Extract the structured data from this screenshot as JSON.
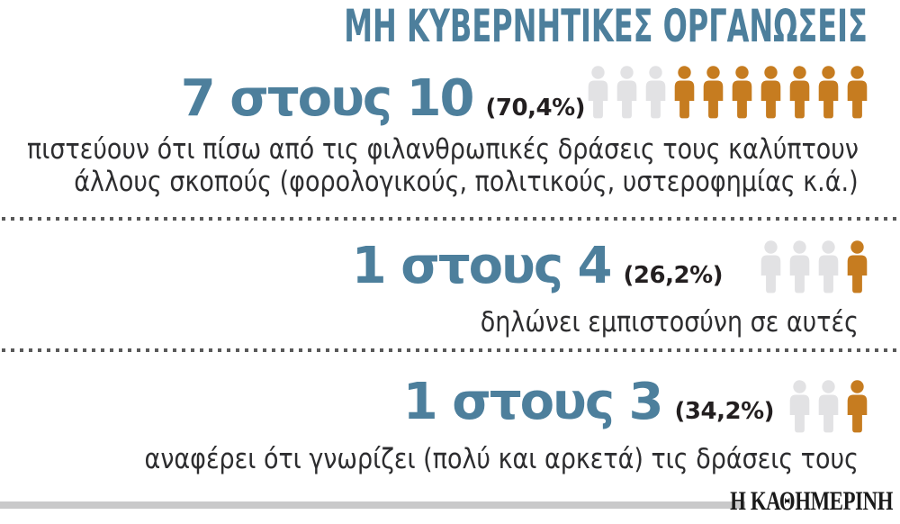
{
  "title": "ΜΗ ΚΥΒΕΡΝΗΤΙΚΕΣ ΟΡΓΑΝΩΣΕΙΣ",
  "colors": {
    "accent-blue": "#4d7f9c",
    "percent-dark": "#231f20",
    "text-dark": "#2d2d2f",
    "icon-gray": "#e2e2e4",
    "icon-orange": "#c67c20",
    "divider": "#595959",
    "footer-bar": "#c9c9ca",
    "brand": "#1a1a1a"
  },
  "rows": [
    {
      "ratio_label": "7 στους 10",
      "percent_label": "(70,4%)",
      "description_lines": [
        "πιστεύουν ότι πίσω από τις φιλανθρωπικές δράσεις τους καλύπτουν",
        "άλλους σκοπούς (φορολογικούς, πολιτικούς, υστεροφημίας κ.ά.)"
      ],
      "pictogram": {
        "total": 10,
        "filled": 7
      }
    },
    {
      "ratio_label": "1 στους 4",
      "percent_label": "(26,2%)",
      "description_lines": [
        "δηλώνει εμπιστοσύνη σε αυτές"
      ],
      "pictogram": {
        "total": 4,
        "filled": 1
      }
    },
    {
      "ratio_label": "1 στους 3",
      "percent_label": "(34,2%)",
      "description_lines": [
        "αναφέρει ότι γνωρίζει (πολύ και αρκετά) τις δράσεις τους"
      ],
      "pictogram": {
        "total": 3,
        "filled": 1
      }
    }
  ],
  "footer": {
    "brand": "Η ΚΑΘΗΜΕΡΙΝΗ"
  },
  "chart_data": {
    "type": "pictograph",
    "title": "ΜΗ ΚΥΒΕΡΝΗΤΙΚΕΣ ΟΡΓΑΝΩΣΕΙΣ",
    "series": [
      {
        "label": "7 στους 10",
        "value_percent": 70.4,
        "statement": "πιστεύουν ότι πίσω από τις φιλανθρωπικές δράσεις τους καλύπτουν άλλους σκοπούς (φορολογικούς, πολιτικούς, υστεροφημίας κ.ά.)",
        "icons_total": 10,
        "icons_highlighted": 7,
        "highlight_side": "right"
      },
      {
        "label": "1 στους 4",
        "value_percent": 26.2,
        "statement": "δηλώνει εμπιστοσύνη σε αυτές",
        "icons_total": 4,
        "icons_highlighted": 1,
        "highlight_side": "right"
      },
      {
        "label": "1 στους 3",
        "value_percent": 34.2,
        "statement": "αναφέρει ότι γνωρίζει (πολύ και αρκετά) τις δράσεις τους",
        "icons_total": 3,
        "icons_highlighted": 1,
        "highlight_side": "right"
      }
    ],
    "legend": "off",
    "source": "Η ΚΑΘΗΜΕΡΙΝΗ",
    "unit_icon": "person",
    "highlight_color": "#c67c20",
    "muted_color": "#e2e2e4"
  }
}
